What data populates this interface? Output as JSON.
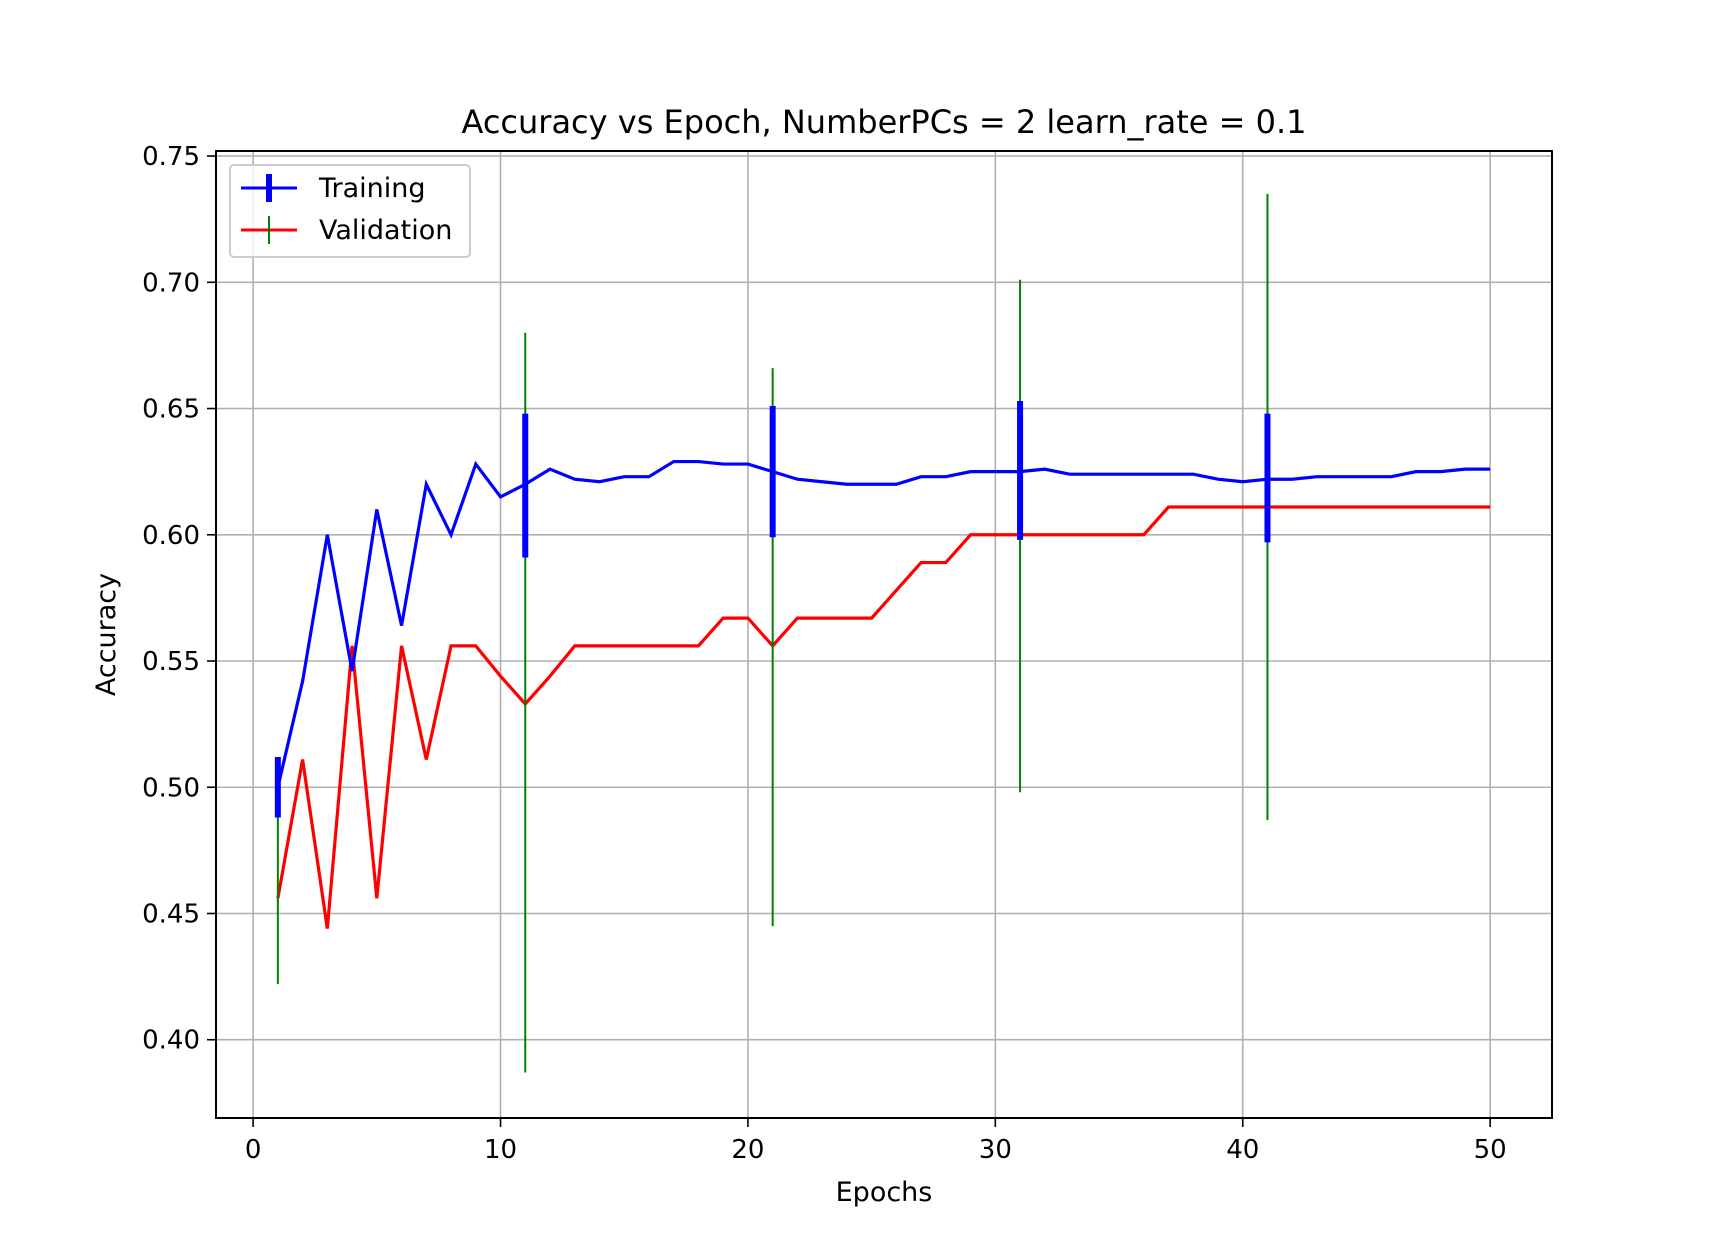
{
  "chart_data": {
    "type": "line",
    "title": "Accuracy vs Epoch, NumberPCs = 2 learn_rate = 0.1",
    "xlabel": "Epochs",
    "ylabel": "Accuracy",
    "xlim": [
      -1.5,
      52.5
    ],
    "ylim": [
      0.369,
      0.752
    ],
    "x_ticks": [
      0,
      10,
      20,
      30,
      40,
      50
    ],
    "x_tick_labels": [
      "0",
      "10",
      "20",
      "30",
      "40",
      "50"
    ],
    "y_ticks": [
      0.4,
      0.45,
      0.5,
      0.55,
      0.6,
      0.65,
      0.7,
      0.75
    ],
    "y_tick_labels": [
      "0.40",
      "0.45",
      "0.50",
      "0.55",
      "0.60",
      "0.65",
      "0.70",
      "0.75"
    ],
    "grid": true,
    "legend_position": "top-left",
    "x": [
      1,
      2,
      3,
      4,
      5,
      6,
      7,
      8,
      9,
      10,
      11,
      12,
      13,
      14,
      15,
      16,
      17,
      18,
      19,
      20,
      21,
      22,
      23,
      24,
      25,
      26,
      27,
      28,
      29,
      30,
      31,
      32,
      33,
      34,
      35,
      36,
      37,
      38,
      39,
      40,
      41,
      42,
      43,
      44,
      45,
      46,
      47,
      48,
      49,
      50
    ],
    "series": [
      {
        "name": "Training",
        "color": "#0000ff",
        "errorbar_color": "#0000ff",
        "values": [
          0.5,
          0.542,
          0.6,
          0.546,
          0.61,
          0.564,
          0.62,
          0.6,
          0.628,
          0.615,
          0.62,
          0.626,
          0.622,
          0.621,
          0.623,
          0.623,
          0.629,
          0.629,
          0.628,
          0.628,
          0.625,
          0.622,
          0.621,
          0.62,
          0.62,
          0.62,
          0.623,
          0.623,
          0.625,
          0.625,
          0.625,
          0.626,
          0.624,
          0.624,
          0.624,
          0.624,
          0.624,
          0.624,
          0.622,
          0.621,
          0.622,
          0.622,
          0.623,
          0.623,
          0.623,
          0.623,
          0.625,
          0.625,
          0.626,
          0.626
        ],
        "errorbars": [
          {
            "x": 1,
            "low": 0.488,
            "high": 0.512
          },
          {
            "x": 11,
            "low": 0.591,
            "high": 0.648
          },
          {
            "x": 21,
            "low": 0.599,
            "high": 0.651
          },
          {
            "x": 31,
            "low": 0.598,
            "high": 0.653
          },
          {
            "x": 41,
            "low": 0.597,
            "high": 0.648
          }
        ]
      },
      {
        "name": "Validation",
        "color": "#ff0000",
        "errorbar_color": "#008000",
        "values": [
          0.456,
          0.511,
          0.444,
          0.556,
          0.456,
          0.556,
          0.511,
          0.556,
          0.556,
          0.544,
          0.533,
          0.544,
          0.556,
          0.556,
          0.556,
          0.556,
          0.556,
          0.556,
          0.567,
          0.567,
          0.556,
          0.567,
          0.567,
          0.567,
          0.567,
          0.578,
          0.589,
          0.589,
          0.6,
          0.6,
          0.6,
          0.6,
          0.6,
          0.6,
          0.6,
          0.6,
          0.611,
          0.611,
          0.611,
          0.611,
          0.611,
          0.611,
          0.611,
          0.611,
          0.611,
          0.611,
          0.611,
          0.611,
          0.611,
          0.611
        ],
        "errorbars": [
          {
            "x": 1,
            "low": 0.422,
            "high": 0.49
          },
          {
            "x": 11,
            "low": 0.387,
            "high": 0.68
          },
          {
            "x": 21,
            "low": 0.445,
            "high": 0.666
          },
          {
            "x": 31,
            "low": 0.498,
            "high": 0.701
          },
          {
            "x": 41,
            "low": 0.487,
            "high": 0.735
          }
        ]
      }
    ]
  }
}
